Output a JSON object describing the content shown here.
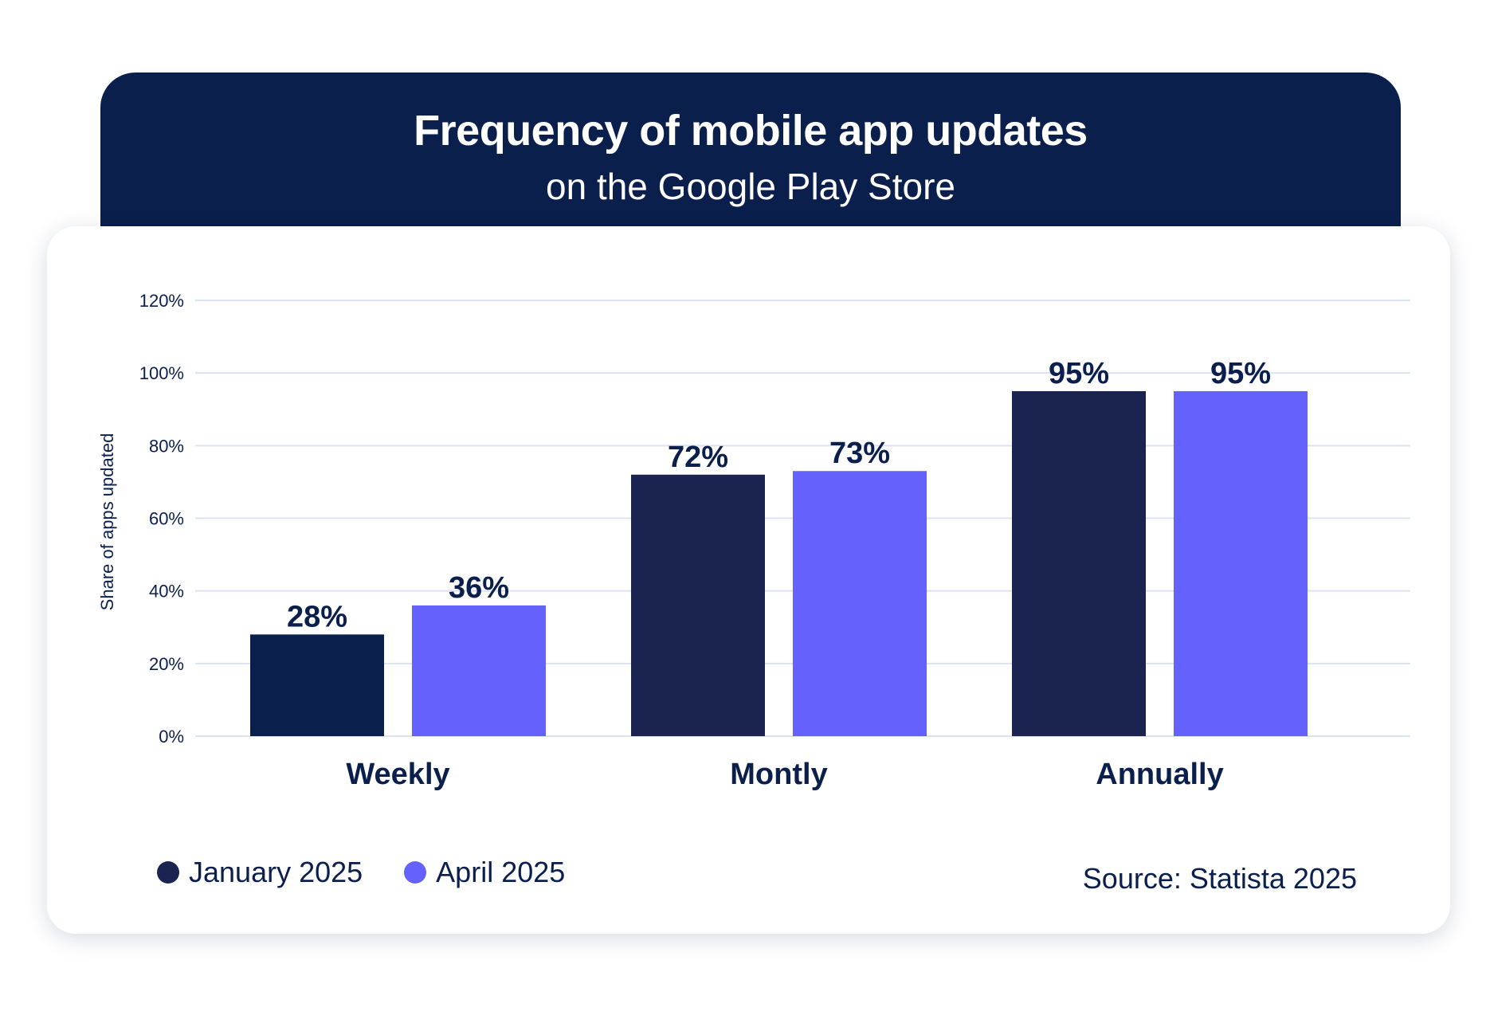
{
  "header": {
    "title": "Frequency of mobile app updates",
    "subtitle": "on the Google Play Store"
  },
  "chart_data": {
    "type": "bar",
    "title": "Frequency of mobile app updates",
    "subtitle": "on the Google Play Store",
    "xlabel": "",
    "ylabel": "Share of apps updated",
    "categories": [
      "Weekly",
      "Montly",
      "Annually"
    ],
    "series": [
      {
        "name": "January 2025",
        "values": [
          28,
          72,
          95
        ],
        "labels": [
          "28%",
          "72%",
          "95%"
        ]
      },
      {
        "name": "April 2025",
        "values": [
          36,
          73,
          95
        ],
        "labels": [
          "36%",
          "73%",
          "95%"
        ]
      }
    ],
    "ylim": [
      0,
      120
    ],
    "yticks": [
      {
        "value": 0,
        "label": "0%"
      },
      {
        "value": 20,
        "label": "20%"
      },
      {
        "value": 40,
        "label": "40%"
      },
      {
        "value": 60,
        "label": "60%"
      },
      {
        "value": 80,
        "label": "80%"
      },
      {
        "value": 100,
        "label": "100%"
      },
      {
        "value": 120,
        "label": "120%"
      }
    ],
    "grid": true,
    "legend": "bottom-left"
  },
  "colors": {
    "header_bg": "#0b1f4d",
    "series": [
      "#1b2451",
      "#6461fc"
    ],
    "weekly_jan": "#0b1f4d",
    "gridline": "#dce3f0",
    "text": "#0b1f4d"
  },
  "legend": {
    "items": [
      {
        "label": "January 2025",
        "color": "#1b2451"
      },
      {
        "label": "April 2025",
        "color": "#6461fc"
      }
    ]
  },
  "footer": {
    "source": "Source: Statista 2025"
  }
}
